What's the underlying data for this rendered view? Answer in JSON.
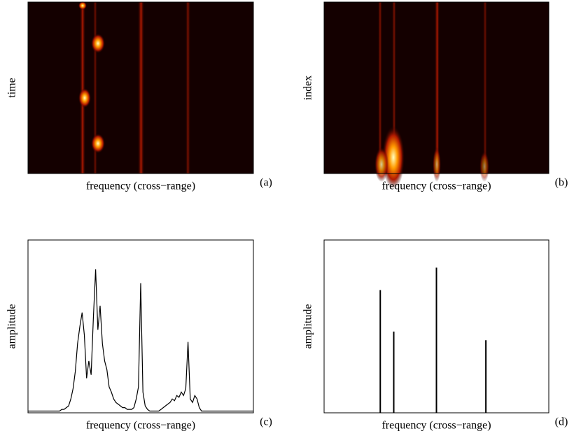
{
  "chart_data": [
    {
      "type": "heatmap",
      "xlabel": "frequency (cross−range)",
      "ylabel": "time",
      "panel": "(a)"
    },
    {
      "type": "heatmap",
      "xlabel": "frequency (cross−range)",
      "ylabel": "index",
      "panel": "(b)"
    },
    {
      "type": "line",
      "xlabel": "frequency (cross−range)",
      "ylabel": "amplitude",
      "panel": "(c)",
      "color": "#000000",
      "xlim": [
        0,
        100
      ],
      "ylim": [
        0,
        100
      ],
      "x": [
        0,
        1,
        2,
        3,
        4,
        5,
        6,
        7,
        8,
        9,
        10,
        11,
        12,
        13,
        14,
        15,
        16,
        17,
        18,
        19,
        20,
        21,
        22,
        23,
        24,
        25,
        26,
        27,
        28,
        29,
        30,
        31,
        32,
        33,
        34,
        35,
        36,
        37,
        38,
        39,
        40,
        41,
        42,
        43,
        44,
        45,
        46,
        47,
        48,
        49,
        50,
        51,
        52,
        53,
        54,
        55,
        56,
        57,
        58,
        59,
        60,
        61,
        62,
        63,
        64,
        65,
        66,
        67,
        68,
        69,
        70,
        71,
        72,
        73,
        74,
        75,
        76,
        77,
        78,
        79,
        80,
        81,
        82,
        83,
        84,
        85,
        86,
        87,
        88,
        89,
        90,
        91,
        92,
        93,
        94,
        95,
        96,
        97,
        98,
        99,
        100
      ],
      "values": [
        1,
        1,
        1,
        1,
        1,
        1,
        1,
        1,
        1,
        1,
        1,
        1,
        1,
        1,
        1,
        2,
        2,
        3,
        4,
        8,
        14,
        24,
        40,
        50,
        58,
        45,
        20,
        30,
        22,
        55,
        83,
        48,
        62,
        40,
        30,
        25,
        15,
        12,
        8,
        6,
        5,
        4,
        3,
        3,
        2,
        2,
        2,
        3,
        8,
        15,
        75,
        12,
        4,
        2,
        1,
        1,
        1,
        1,
        1,
        2,
        3,
        4,
        5,
        6,
        8,
        7,
        10,
        9,
        12,
        10,
        14,
        41,
        8,
        6,
        10,
        8,
        3,
        1,
        1,
        1,
        1,
        1,
        1,
        1,
        1,
        1,
        1,
        1,
        1,
        1,
        1,
        1,
        1,
        1,
        1,
        1,
        1,
        1,
        1,
        1,
        1
      ]
    },
    {
      "type": "stem",
      "xlabel": "frequency (cross−range)",
      "ylabel": "amplitude",
      "panel": "(d)",
      "color": "#000000",
      "xlim": [
        0,
        100
      ],
      "ylim": [
        0,
        100
      ],
      "x": [
        25,
        31,
        50,
        72
      ],
      "values": [
        71,
        47,
        84,
        42
      ]
    }
  ]
}
